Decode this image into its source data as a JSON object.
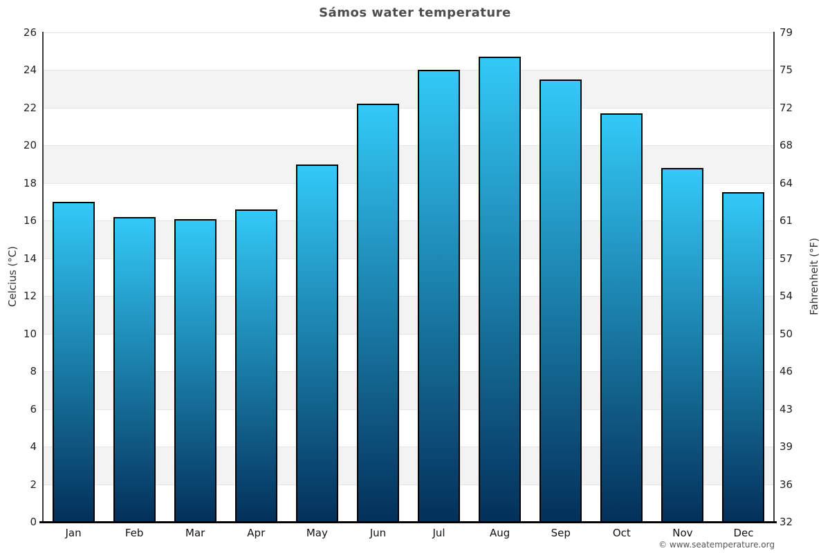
{
  "title": "Sámos water temperature",
  "footer_credit": "© www.seatemperature.org",
  "chart_data": {
    "type": "bar",
    "title": "Sámos water temperature",
    "categories": [
      "Jan",
      "Feb",
      "Mar",
      "Apr",
      "May",
      "Jun",
      "Jul",
      "Aug",
      "Sep",
      "Oct",
      "Nov",
      "Dec"
    ],
    "series": [
      {
        "name": "Water temperature (°C)",
        "values": [
          17.0,
          16.2,
          16.1,
          16.6,
          19.0,
          22.2,
          24.0,
          24.7,
          23.5,
          21.7,
          18.8,
          17.5
        ]
      }
    ],
    "xlabel": "",
    "ylabel_left": "Celcius (°C)",
    "ylabel_right": "Fahrenheit (°F)",
    "ylim": [
      0,
      26
    ],
    "y_tick_step": 2,
    "y_ticks_celsius": [
      26,
      24,
      22,
      20,
      18,
      16,
      14,
      12,
      10,
      8,
      6,
      4,
      2,
      0
    ],
    "y_ticks_fahrenheit": [
      79,
      75,
      72,
      68,
      64,
      61,
      57,
      54,
      50,
      46,
      43,
      39,
      36,
      32
    ],
    "grid": "horizontal gridlines every 2°C with alternating white/gray bands",
    "legend_position": "none",
    "colors": {
      "bar_gradient_top": "#33c9f7",
      "bar_gradient_bottom": "#03305a",
      "bar_border": "#000000",
      "band_shaded": "#f3f3f3",
      "band_plain": "#ffffff",
      "gridline": "#e4e4e4",
      "axis_line": "#000000",
      "title_text": "#4d4d4d",
      "tick_text": "#222222",
      "footer_text": "#555555"
    }
  }
}
